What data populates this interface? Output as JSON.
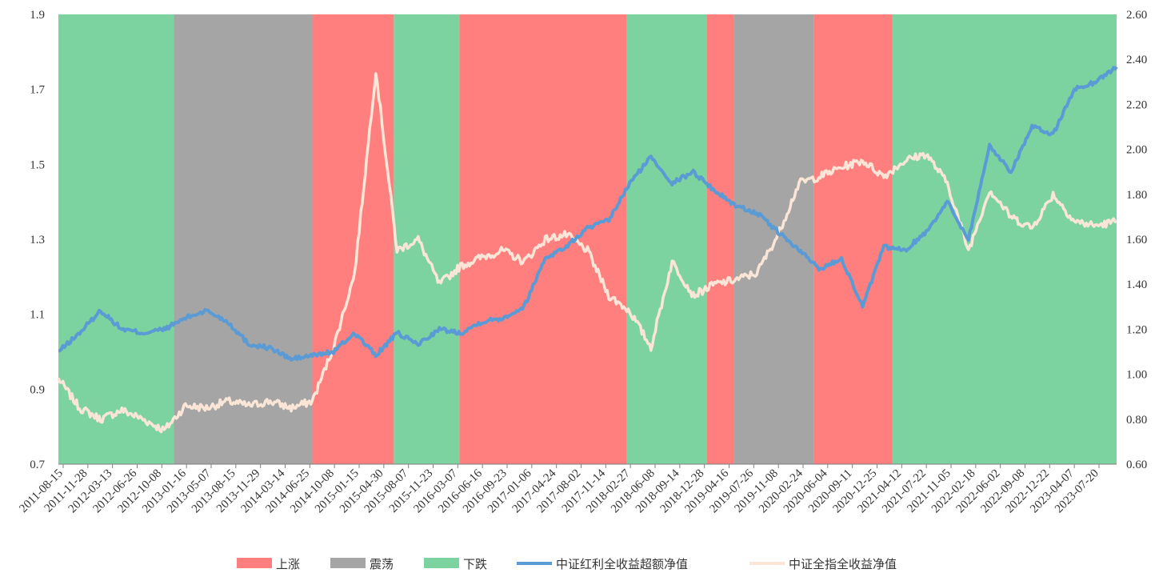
{
  "chart_data": {
    "type": "line",
    "title": "",
    "left_axis": {
      "min": 0.7,
      "max": 1.9,
      "ticks": [
        "0.7",
        "0.9",
        "1.1",
        "1.3",
        "1.5",
        "1.7",
        "1.9"
      ]
    },
    "right_axis": {
      "min": 0.6,
      "max": 2.6,
      "ticks": [
        "0.60",
        "0.80",
        "1.00",
        "1.20",
        "1.40",
        "1.60",
        "1.80",
        "2.00",
        "2.20",
        "2.40",
        "2.60"
      ]
    },
    "x_tick_labels": [
      "2011-08-15",
      "2011-11-28",
      "2012-03-13",
      "2012-06-26",
      "2012-10-08",
      "2013-01-16",
      "2013-05-07",
      "2013-08-15",
      "2013-11-29",
      "2014-03-14",
      "2014-06-25",
      "2014-10-08",
      "2015-01-15",
      "2015-04-30",
      "2015-08-07",
      "2015-11-23",
      "2016-03-07",
      "2016-06-16",
      "2016-09-23",
      "2017-01-06",
      "2017-04-24",
      "2017-08-02",
      "2017-11-14",
      "2018-02-27",
      "2018-06-08",
      "2018-09-14",
      "2018-12-28",
      "2019-04-16",
      "2019-07-26",
      "2019-11-08",
      "2020-02-24",
      "2020-06-04",
      "2020-09-11",
      "2020-12-25",
      "2021-04-12",
      "2021-07-22",
      "2021-11-05",
      "2022-02-18",
      "2022-06-02",
      "2022-09-08",
      "2022-12-22",
      "2023-04-07",
      "2023-07-20"
    ],
    "regimes": [
      {
        "type": "down",
        "start": 0.0,
        "end": 10.9
      },
      {
        "type": "flat",
        "start": 10.9,
        "end": 24.0
      },
      {
        "type": "up",
        "start": 24.0,
        "end": 31.7
      },
      {
        "type": "down",
        "start": 31.7,
        "end": 37.9
      },
      {
        "type": "up",
        "start": 37.9,
        "end": 53.7
      },
      {
        "type": "down",
        "start": 53.7,
        "end": 61.3
      },
      {
        "type": "up",
        "start": 61.3,
        "end": 63.8
      },
      {
        "type": "flat",
        "start": 63.8,
        "end": 71.4
      },
      {
        "type": "up",
        "start": 71.4,
        "end": 78.8
      },
      {
        "type": "down",
        "start": 78.8,
        "end": 100.0
      }
    ],
    "colors": {
      "up": "#ff7f7f",
      "flat": "#a5a5a5",
      "down": "#7dd3a0",
      "series_excess": "#5b9bd5",
      "series_index": "#fbe5d6"
    },
    "series": [
      {
        "name": "中证红利全收益超额净值",
        "axis": "left",
        "x": [
          0,
          2,
          4,
          6,
          8,
          10,
          12,
          14,
          16,
          18,
          20,
          22,
          24,
          26,
          28,
          30,
          32,
          34,
          36,
          38,
          40,
          42,
          44,
          46,
          48,
          50,
          52,
          54,
          56,
          58,
          60,
          62,
          64,
          66,
          68,
          70,
          72,
          74,
          76,
          78,
          80,
          82,
          84,
          86,
          88,
          90,
          92,
          94,
          96,
          98,
          100
        ],
        "values": [
          1.0,
          1.05,
          1.11,
          1.06,
          1.05,
          1.06,
          1.09,
          1.11,
          1.08,
          1.02,
          1.01,
          0.98,
          0.99,
          1.0,
          1.05,
          0.99,
          1.05,
          1.02,
          1.06,
          1.05,
          1.08,
          1.09,
          1.12,
          1.25,
          1.28,
          1.33,
          1.35,
          1.45,
          1.52,
          1.45,
          1.48,
          1.43,
          1.39,
          1.37,
          1.32,
          1.27,
          1.22,
          1.25,
          1.12,
          1.28,
          1.27,
          1.32,
          1.4,
          1.3,
          1.55,
          1.48,
          1.6,
          1.58,
          1.7,
          1.72,
          1.76
        ]
      },
      {
        "name": "中证全指全收益净值",
        "axis": "right",
        "x": [
          0,
          2,
          4,
          6,
          8,
          10,
          12,
          14,
          16,
          18,
          20,
          22,
          24,
          26,
          28,
          30,
          32,
          34,
          36,
          38,
          40,
          42,
          44,
          46,
          48,
          50,
          52,
          54,
          56,
          58,
          60,
          62,
          64,
          66,
          68,
          70,
          72,
          74,
          76,
          78,
          80,
          82,
          84,
          86,
          88,
          90,
          92,
          94,
          96,
          98,
          100
        ],
        "values": [
          0.98,
          0.85,
          0.8,
          0.84,
          0.8,
          0.75,
          0.86,
          0.85,
          0.88,
          0.86,
          0.88,
          0.85,
          0.88,
          1.12,
          1.45,
          2.35,
          1.55,
          1.6,
          1.4,
          1.48,
          1.52,
          1.55,
          1.5,
          1.6,
          1.62,
          1.55,
          1.35,
          1.28,
          1.12,
          1.5,
          1.35,
          1.4,
          1.42,
          1.45,
          1.62,
          1.85,
          1.88,
          1.92,
          1.95,
          1.88,
          1.95,
          1.98,
          1.85,
          1.55,
          1.82,
          1.7,
          1.65,
          1.8,
          1.68,
          1.66,
          1.68
        ]
      }
    ],
    "legend": [
      {
        "label": "上涨",
        "kind": "box",
        "colorKey": "up"
      },
      {
        "label": "震荡",
        "kind": "box",
        "colorKey": "flat"
      },
      {
        "label": "下跌",
        "kind": "box",
        "colorKey": "down"
      },
      {
        "label": "中证红利全收益超额净值",
        "kind": "line",
        "colorKey": "series_excess"
      },
      {
        "label": "中证全指全收益净值",
        "kind": "line",
        "colorKey": "series_index"
      }
    ],
    "legend_position": "bottom-center"
  }
}
